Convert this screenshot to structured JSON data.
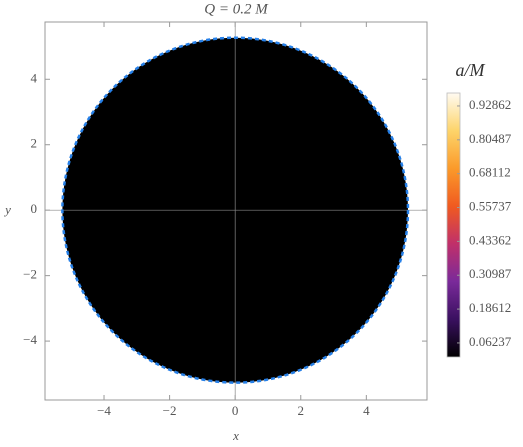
{
  "chart_data": {
    "type": "shadow",
    "title": "Q = 0.2 M",
    "x_label": "x",
    "y_label": "y",
    "xlim": [
      -5.8,
      5.85
    ],
    "ylim": [
      -5.8,
      5.75
    ],
    "xticks": [
      {
        "value": -4,
        "label": "−4"
      },
      {
        "value": -2,
        "label": "−2"
      },
      0,
      2,
      4
    ],
    "yticks": [
      {
        "value": -4,
        "label": "−4"
      },
      {
        "value": -2,
        "label": "−2"
      },
      0,
      2,
      4
    ],
    "shadow": {
      "radius": 5.27,
      "fill": "#000000",
      "edge_color": "#2680e8"
    },
    "axes_lines": true,
    "colorbar": {
      "title": "a/M",
      "lim": [
        0.011,
        0.976
      ],
      "ticks": [
        0.06237,
        0.18612,
        0.30987,
        0.43362,
        0.55737,
        0.68112,
        0.80487,
        0.92862
      ],
      "colors": [
        "#000000",
        "#3a1060",
        "#7a2a9a",
        "#c0306a",
        "#f05a20",
        "#fb9a2a",
        "#fdd46a",
        "#fffbf2"
      ]
    }
  }
}
